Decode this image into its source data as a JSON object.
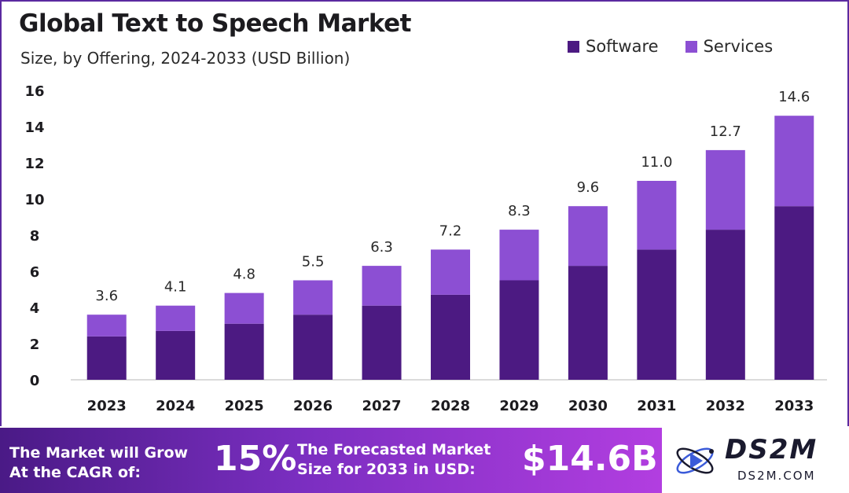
{
  "chart_data": {
    "type": "bar",
    "stacked": true,
    "title": "Global Text to Speech Market",
    "subtitle": "Size, by Offering, 2024-2033 (USD Billion)",
    "categories": [
      "2023",
      "2024",
      "2025",
      "2026",
      "2027",
      "2028",
      "2029",
      "2030",
      "2031",
      "2032",
      "2033"
    ],
    "series": [
      {
        "name": "Software",
        "color": "#4c1a82",
        "values": [
          2.4,
          2.7,
          3.1,
          3.6,
          4.1,
          4.7,
          5.5,
          6.3,
          7.2,
          8.3,
          9.6
        ]
      },
      {
        "name": "Services",
        "color": "#8c4fd3",
        "values": [
          1.2,
          1.4,
          1.7,
          1.9,
          2.2,
          2.5,
          2.8,
          3.3,
          3.8,
          4.4,
          5.0
        ]
      }
    ],
    "totals": [
      3.6,
      4.1,
      4.8,
      5.5,
      6.3,
      7.2,
      8.3,
      9.6,
      11.0,
      12.7,
      14.6
    ],
    "total_labels": [
      "3.6",
      "4.1",
      "4.8",
      "5.5",
      "6.3",
      "7.2",
      "8.3",
      "9.6",
      "11.0",
      "12.7",
      "14.6"
    ],
    "yticks": [
      "0",
      "2",
      "4",
      "6",
      "8",
      "10",
      "12",
      "14",
      "16"
    ],
    "ylim": [
      0,
      16
    ],
    "legend_position": "top-right",
    "grid": false
  },
  "banner": {
    "cagr_text": "The Market will Grow At the CAGR of:",
    "cagr_value": "15%",
    "forecast_text": "The Forecasted Market Size for 2033 in USD:",
    "forecast_value": "$14.6B"
  },
  "logo": {
    "name": "DS2M",
    "url": "DS2M.COM",
    "icon": "atom-play-icon"
  },
  "colors": {
    "software": "#4c1a82",
    "services": "#8c4fd3",
    "axis": "#cfcfcf",
    "frame": "#5b2aa0"
  }
}
